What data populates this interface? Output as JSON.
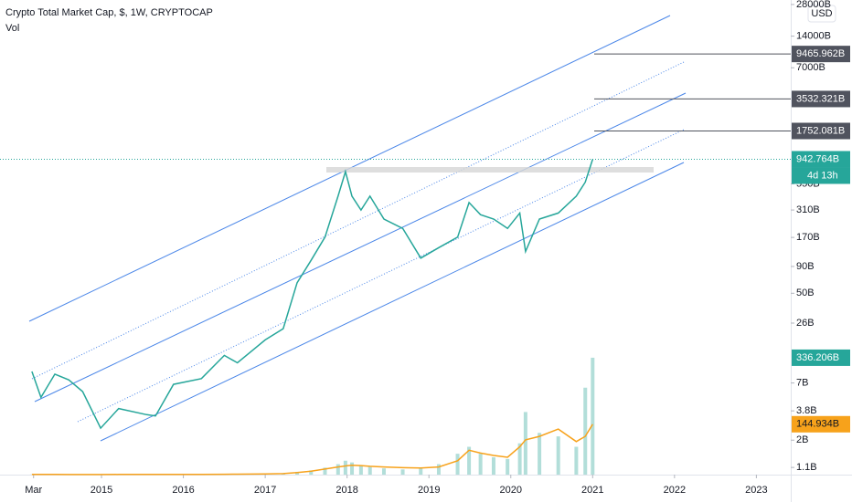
{
  "chart_data": {
    "type": "line",
    "title": "Crypto Total Market Cap, $, 1W, CRYPTOCAP",
    "subtitle": "Vol",
    "currency": "USD",
    "log_scale": true,
    "x": [
      2014.15,
      2014.26,
      2014.43,
      2014.6,
      2014.77,
      2014.99,
      2015.21,
      2015.55,
      2015.66,
      2015.88,
      2016.22,
      2016.5,
      2016.66,
      2017.0,
      2017.22,
      2017.39,
      2017.56,
      2017.73,
      2017.89,
      2017.98,
      2018.06,
      2018.17,
      2018.28,
      2018.45,
      2018.68,
      2018.9,
      2019.12,
      2019.35,
      2019.49,
      2019.63,
      2019.79,
      2019.96,
      2020.11,
      2020.18,
      2020.35,
      2020.58,
      2020.8,
      2020.91,
      2021.0
    ],
    "xlim": [
      2013.76,
      2023.42
    ],
    "xticks": [
      {
        "value": 2014.17,
        "label": "Mar"
      },
      2015,
      2016,
      2017,
      2018,
      2019,
      2020,
      2021,
      2022,
      2023
    ],
    "ylim": [
      0.94,
      30900
    ],
    "yticks": [
      {
        "value": 28000,
        "label": "28000B"
      },
      {
        "value": 14000,
        "label": "14000B"
      },
      {
        "value": 7000,
        "label": "7000B"
      },
      {
        "value": 550,
        "label": "550B"
      },
      {
        "value": 310,
        "label": "310B"
      },
      {
        "value": 170,
        "label": "170B"
      },
      {
        "value": 90,
        "label": "90B"
      },
      {
        "value": 50,
        "label": "50B"
      },
      {
        "value": 26,
        "label": "26B"
      },
      {
        "value": 7,
        "label": "7B"
      },
      {
        "value": 3.8,
        "label": "3.8B"
      },
      {
        "value": 2,
        "label": "2B"
      },
      {
        "value": 1.1,
        "label": "1.1B"
      }
    ],
    "y2lim": [
      0,
      1365
    ],
    "series": [
      {
        "color": "#26a69a",
        "values": [
          9,
          5.1,
          8.5,
          7.5,
          5.8,
          2.6,
          4,
          3.5,
          3.4,
          6.8,
          7.7,
          12.8,
          10.9,
          18,
          23,
          63,
          103,
          171,
          420,
          720,
          420,
          310,
          420,
          254,
          207,
          108,
          136,
          171,
          365,
          280,
          254,
          207,
          290,
          125,
          254,
          290,
          420,
          570,
          942.764
        ]
      },
      {
        "color": "#9fd6cf",
        "axis": "y2",
        "type": "bar",
        "values": [
          0.5,
          0.4,
          0.4,
          0.3,
          0.3,
          0.3,
          0.4,
          0.5,
          0.5,
          0.6,
          0.8,
          1,
          1.2,
          2,
          4,
          8,
          12,
          20,
          30,
          40,
          35,
          25,
          22,
          18,
          15,
          20,
          30,
          60,
          80,
          60,
          50,
          45,
          90,
          180,
          120,
          110,
          80,
          250,
          336.206
        ]
      },
      {
        "color": "#f7a21b",
        "axis": "y2",
        "values": [
          0.5,
          0.4,
          0.4,
          0.3,
          0.3,
          0.3,
          0.4,
          0.5,
          0.5,
          0.6,
          0.8,
          1,
          1.2,
          2,
          3,
          6,
          10,
          16,
          22,
          25,
          27,
          26,
          24,
          22,
          20,
          19,
          22,
          40,
          70,
          62,
          55,
          50,
          80,
          100,
          110,
          131,
          95,
          110,
          144.934
        ]
      }
    ],
    "price_lines": [
      {
        "value": 9465.962,
        "label": "9465.962B"
      },
      {
        "value": 3532.321,
        "label": "3532.321B"
      },
      {
        "value": 1752.081,
        "label": "1752.081B"
      }
    ],
    "last_labels": [
      {
        "value": 942.764,
        "label": "942.764B",
        "color": "#26a69a"
      },
      {
        "value": 336.206,
        "label": "336.206B",
        "color": "#26a69a",
        "axis": "y2"
      },
      {
        "value": 144.934,
        "label": "144.934B",
        "color": "#f7a21b",
        "axis": "y2"
      }
    ],
    "countdown": "4d 13h"
  }
}
